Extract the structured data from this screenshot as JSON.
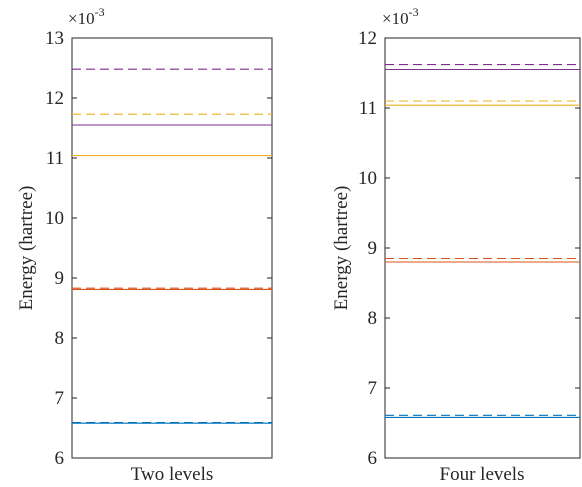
{
  "chart_data": [
    {
      "type": "line",
      "ylabel": "Energy (hartree)",
      "xlabel": "Two levels",
      "ylim": [
        6,
        13
      ],
      "yticks": [
        "6",
        "7",
        "8",
        "9",
        "10",
        "11",
        "12",
        "13"
      ],
      "multiplier": {
        "base": "×10",
        "exponent": "-3"
      },
      "grid": false,
      "series": [
        {
          "color": "#0072BD",
          "style": "solid",
          "value": 6.58
        },
        {
          "color": "#0072BD",
          "style": "dashed",
          "value": 6.59
        },
        {
          "color": "#D95319",
          "style": "solid",
          "value": 8.81
        },
        {
          "color": "#D95319",
          "style": "dashed",
          "value": 8.83
        },
        {
          "color": "#EDB120",
          "style": "solid",
          "value": 11.04
        },
        {
          "color": "#EDB120",
          "style": "dashed",
          "value": 11.73
        },
        {
          "color": "#7E2F8E",
          "style": "solid",
          "value": 11.55
        },
        {
          "color": "#7E2F8E",
          "style": "dashed",
          "value": 12.48
        }
      ]
    },
    {
      "type": "line",
      "ylabel": "Energy (hartree)",
      "xlabel": "Four levels",
      "ylim": [
        6,
        12
      ],
      "yticks": [
        "6",
        "7",
        "8",
        "9",
        "10",
        "11",
        "12"
      ],
      "multiplier": {
        "base": "×10",
        "exponent": "-3"
      },
      "grid": false,
      "series": [
        {
          "color": "#0072BD",
          "style": "solid",
          "value": 6.58
        },
        {
          "color": "#0072BD",
          "style": "dashed",
          "value": 6.61
        },
        {
          "color": "#D95319",
          "style": "solid",
          "value": 8.8
        },
        {
          "color": "#D95319",
          "style": "dashed",
          "value": 8.85
        },
        {
          "color": "#EDB120",
          "style": "solid",
          "value": 11.04
        },
        {
          "color": "#EDB120",
          "style": "dashed",
          "value": 11.1
        },
        {
          "color": "#7E2F8E",
          "style": "solid",
          "value": 11.55
        },
        {
          "color": "#7E2F8E",
          "style": "dashed",
          "value": 11.62
        }
      ]
    }
  ]
}
